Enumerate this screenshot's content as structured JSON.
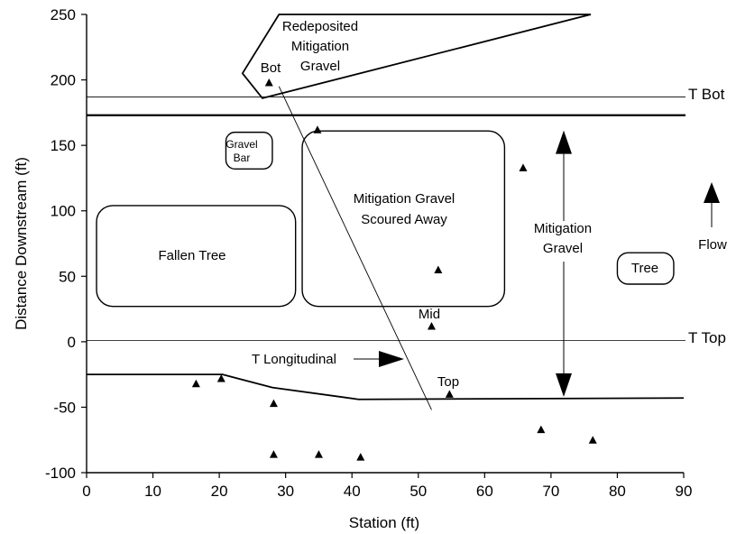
{
  "chart_data": {
    "type": "scatter",
    "xlabel": "Station (ft)",
    "ylabel": "Distance Downstream (ft)",
    "xlim": [
      0,
      90
    ],
    "ylim": [
      -100,
      250
    ],
    "xticks": [
      "0",
      "10",
      "20",
      "30",
      "40",
      "50",
      "60",
      "70",
      "80",
      "90"
    ],
    "yticks": [
      "250",
      "200",
      "150",
      "100",
      "50",
      "0",
      "-50",
      "-100"
    ],
    "grid": false,
    "points": [
      {
        "x": 27.5,
        "y": 198
      },
      {
        "x": 34.8,
        "y": 162
      },
      {
        "x": 65.8,
        "y": 133
      },
      {
        "x": 53.0,
        "y": 55
      },
      {
        "x": 52.0,
        "y": 12
      },
      {
        "x": 54.7,
        "y": -40
      },
      {
        "x": 16.5,
        "y": -32
      },
      {
        "x": 20.3,
        "y": -28
      },
      {
        "x": 28.2,
        "y": -47
      },
      {
        "x": 28.2,
        "y": -86
      },
      {
        "x": 35.0,
        "y": -86
      },
      {
        "x": 41.3,
        "y": -88
      },
      {
        "x": 68.5,
        "y": -67
      },
      {
        "x": 76.3,
        "y": -75
      }
    ],
    "transect_lines": [
      {
        "label": "T Bot",
        "y": 187
      },
      {
        "label": "T Top",
        "y": 1
      }
    ],
    "reference_line_y": 173,
    "bank_line": [
      [
        0,
        -25
      ],
      [
        20.5,
        -25
      ],
      [
        28,
        -35
      ],
      [
        41,
        -44
      ],
      [
        90,
        -43
      ]
    ],
    "longitudinal_line": [
      [
        29,
        195
      ],
      [
        52,
        -52
      ]
    ],
    "redeposited_polygon": [
      [
        23.5,
        205
      ],
      [
        29,
        250
      ],
      [
        76,
        250
      ],
      [
        26.5,
        186
      ]
    ],
    "regions": [
      {
        "label_lines": [
          "Gravel",
          "Bar"
        ],
        "x0": 21.0,
        "x1": 28.0,
        "y0": 132,
        "y1": 160,
        "rx": 10
      },
      {
        "label_lines": [
          "Fallen Tree"
        ],
        "x0": 1.5,
        "x1": 31.5,
        "y0": 27,
        "y1": 104,
        "rx": 18
      },
      {
        "label_lines": [
          "Mitigation Gravel",
          "Scoured Away"
        ],
        "x0": 32.5,
        "x1": 63.0,
        "y0": 27,
        "y1": 161,
        "rx": 18
      },
      {
        "label_lines": [
          "Tree"
        ],
        "x0": 80.0,
        "x1": 88.5,
        "y0": 44,
        "y1": 68,
        "rx": 12
      }
    ],
    "annotations": {
      "redeposited": [
        "Redeposited",
        "Mitigation",
        "Gravel"
      ],
      "bot": "Bot",
      "mid": "Mid",
      "top": "Top",
      "t_bot": "T Bot",
      "t_top": "T Top",
      "t_longitudinal": "T Longitudinal",
      "mitigation_gravel": [
        "Mitigation",
        "Gravel"
      ],
      "flow": "Flow"
    },
    "mitigation_span": [
      160,
      -42
    ]
  }
}
